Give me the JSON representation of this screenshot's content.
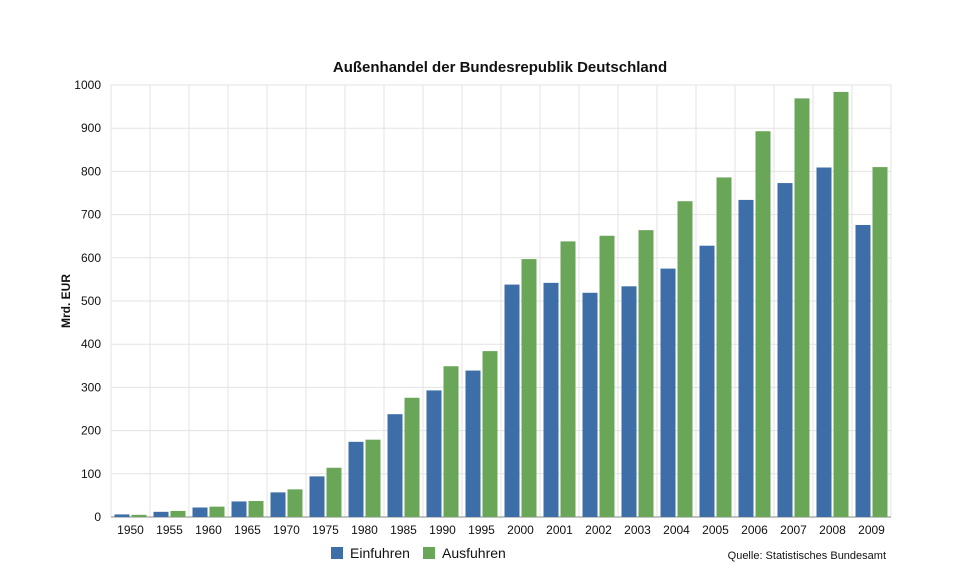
{
  "chart_data": {
    "type": "bar",
    "title": "Außenhandel der Bundesrepublik Deutschland",
    "xlabel": "",
    "ylabel": "Mrd. EUR",
    "ylim": [
      0,
      1000
    ],
    "yticks": [
      0,
      100,
      200,
      300,
      400,
      500,
      600,
      700,
      800,
      900,
      1000
    ],
    "grid": true,
    "categories": [
      "1950",
      "1955",
      "1960",
      "1965",
      "1970",
      "1975",
      "1980",
      "1985",
      "1990",
      "1995",
      "2000",
      "2001",
      "2002",
      "2003",
      "2004",
      "2005",
      "2006",
      "2007",
      "2008",
      "2009"
    ],
    "series": [
      {
        "name": "Einfuhren",
        "color": "#3d6ea8",
        "values": [
          6,
          12,
          22,
          36,
          57,
          94,
          174,
          238,
          293,
          339,
          538,
          542,
          519,
          534,
          575,
          628,
          734,
          773,
          809,
          676
        ]
      },
      {
        "name": "Ausfuhren",
        "color": "#6aa657",
        "values": [
          5,
          14,
          24,
          37,
          64,
          114,
          179,
          276,
          349,
          384,
          597,
          638,
          651,
          664,
          731,
          786,
          893,
          969,
          984,
          810
        ]
      }
    ],
    "legend_position": "bottom-center",
    "source": "Quelle: Statistisches Bundesamt"
  }
}
